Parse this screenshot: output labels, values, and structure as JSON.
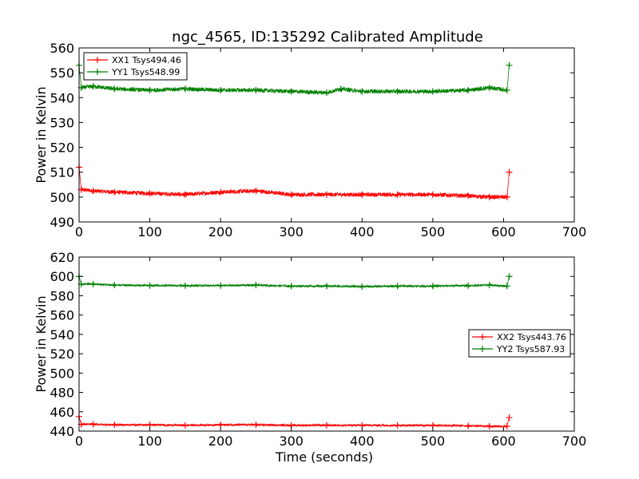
{
  "figure": {
    "title": "ngc_4565, ID:135292 Calibrated Amplitude"
  },
  "chart_data": [
    {
      "type": "line",
      "xlabel": "",
      "ylabel": "Power in Kelvin",
      "xlim": [
        0,
        700
      ],
      "ylim": [
        490,
        560
      ],
      "xticks": [
        0,
        100,
        200,
        300,
        400,
        500,
        600,
        700
      ],
      "yticks": [
        490,
        500,
        510,
        520,
        530,
        540,
        550,
        560
      ],
      "grid": false,
      "legend_position": "top-left",
      "series": [
        {
          "name": "XX1 Tsys494.46",
          "color": "#ff0000",
          "x": [
            0,
            3,
            20,
            50,
            100,
            150,
            200,
            250,
            300,
            350,
            400,
            450,
            500,
            550,
            580,
            605,
            608
          ],
          "y": [
            512,
            503,
            502.5,
            502,
            501.5,
            501,
            502,
            502.5,
            501,
            501,
            501,
            501,
            501,
            500.5,
            500,
            500,
            510
          ]
        },
        {
          "name": "YY1 Tsys548.99",
          "color": "#008000",
          "x": [
            0,
            3,
            20,
            50,
            100,
            150,
            200,
            250,
            300,
            350,
            370,
            400,
            450,
            500,
            550,
            580,
            605,
            608
          ],
          "y": [
            553,
            544,
            544.5,
            543.5,
            543,
            543.5,
            543,
            543,
            542.5,
            542,
            543.5,
            542.5,
            542.5,
            542.5,
            543,
            544,
            543,
            553
          ]
        }
      ]
    },
    {
      "type": "line",
      "xlabel": "Time (seconds)",
      "ylabel": "Power in Kelvin",
      "xlim": [
        0,
        700
      ],
      "ylim": [
        440,
        620
      ],
      "xticks": [
        0,
        100,
        200,
        300,
        400,
        500,
        600,
        700
      ],
      "yticks": [
        440,
        460,
        480,
        500,
        520,
        540,
        560,
        580,
        600,
        620
      ],
      "grid": false,
      "legend_position": "center-right",
      "series": [
        {
          "name": "XX2 Tsys443.76",
          "color": "#ff0000",
          "x": [
            0,
            3,
            20,
            50,
            100,
            150,
            200,
            250,
            300,
            350,
            400,
            450,
            500,
            550,
            580,
            605,
            608
          ],
          "y": [
            455,
            447,
            447,
            446.5,
            446.5,
            446,
            446.5,
            446.5,
            446,
            446,
            446,
            446,
            446,
            445.5,
            445,
            445,
            454
          ]
        },
        {
          "name": "YY2 Tsys587.93",
          "color": "#008000",
          "x": [
            0,
            3,
            20,
            50,
            100,
            150,
            200,
            250,
            300,
            350,
            400,
            450,
            500,
            550,
            580,
            605,
            608
          ],
          "y": [
            600,
            592,
            592,
            591,
            590.5,
            590.5,
            590.5,
            591,
            590,
            590,
            589.5,
            590,
            590,
            590.5,
            591,
            590,
            600
          ]
        }
      ]
    }
  ]
}
